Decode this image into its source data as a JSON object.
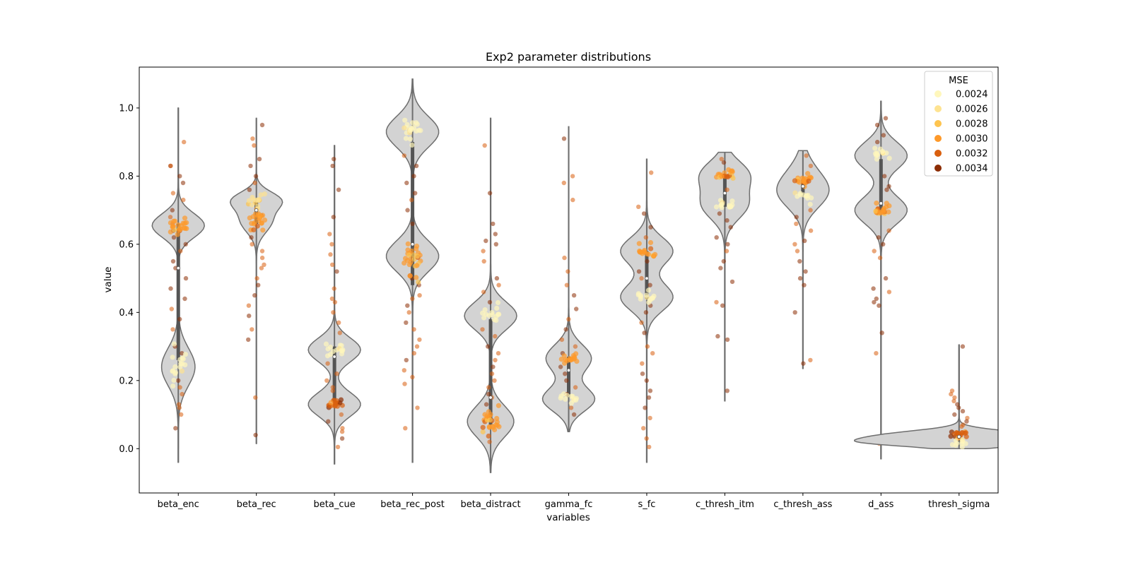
{
  "chart_data": {
    "type": "violin",
    "title": "Exp2 parameter distributions",
    "xlabel": "variables",
    "ylabel": "value",
    "ylim": [
      -0.13,
      1.12
    ],
    "yticks": [
      "0.0",
      "0.2",
      "0.4",
      "0.6",
      "0.8",
      "1.0"
    ],
    "categories": [
      "beta_enc",
      "beta_rec",
      "beta_cue",
      "beta_rec_post",
      "beta_distract",
      "gamma_fc",
      "s_fc",
      "c_thresh_itm",
      "c_thresh_ass",
      "d_ass",
      "thresh_sigma"
    ],
    "legend": {
      "title": "MSE",
      "placement": "upper right",
      "entries": [
        {
          "label": "0.0024",
          "color": "#fff7bc"
        },
        {
          "label": "0.0026",
          "color": "#fee391"
        },
        {
          "label": "0.0028",
          "color": "#fec44f"
        },
        {
          "label": "0.0030",
          "color": "#fe9929"
        },
        {
          "label": "0.0032",
          "color": "#d95f0e"
        },
        {
          "label": "0.0034",
          "color": "#8c2d04"
        }
      ]
    },
    "violins": [
      {
        "name": "beta_enc",
        "min": -0.04,
        "max": 1.0,
        "modes": [
          [
            0.24,
            0.055
          ],
          [
            0.655,
            0.035
          ]
        ],
        "median": 0.53,
        "q1": 0.26,
        "q3": 0.66,
        "clusters": [
          {
            "center": 0.655,
            "spread": 0.01,
            "n": 22,
            "mse": 3
          },
          {
            "center": 0.24,
            "spread": 0.03,
            "n": 18,
            "mse": 0
          }
        ],
        "scatter": [
          0.9,
          0.83,
          0.83,
          0.8,
          0.78,
          0.75,
          0.73,
          0.7,
          0.68,
          0.66,
          0.64,
          0.62,
          0.6,
          0.58,
          0.55,
          0.53,
          0.5,
          0.47,
          0.44,
          0.41,
          0.38,
          0.35,
          0.3,
          0.28,
          0.2,
          0.18,
          0.16,
          0.13,
          0.12,
          0.1,
          0.06
        ]
      },
      {
        "name": "beta_rec",
        "min": 0.015,
        "max": 0.97,
        "modes": [
          [
            0.67,
            0.035
          ],
          [
            0.73,
            0.025
          ]
        ],
        "median": 0.7,
        "q1": 0.66,
        "q3": 0.73,
        "clusters": [
          {
            "center": 0.67,
            "spread": 0.015,
            "n": 24,
            "mse": 3
          },
          {
            "center": 0.73,
            "spread": 0.015,
            "n": 14,
            "mse": 1
          }
        ],
        "scatter": [
          0.95,
          0.91,
          0.89,
          0.85,
          0.83,
          0.8,
          0.78,
          0.76,
          0.62,
          0.6,
          0.58,
          0.56,
          0.54,
          0.53,
          0.5,
          0.48,
          0.45,
          0.42,
          0.39,
          0.35,
          0.32,
          0.15,
          0.04
        ]
      },
      {
        "name": "beta_cue",
        "min": -0.045,
        "max": 0.89,
        "modes": [
          [
            0.13,
            0.035
          ],
          [
            0.29,
            0.035
          ]
        ],
        "median": 0.27,
        "q1": 0.14,
        "q3": 0.3,
        "clusters": [
          {
            "center": 0.13,
            "spread": 0.008,
            "n": 18,
            "mse": 4
          },
          {
            "center": 0.29,
            "spread": 0.012,
            "n": 14,
            "mse": 0
          }
        ],
        "scatter": [
          0.85,
          0.83,
          0.76,
          0.68,
          0.63,
          0.6,
          0.57,
          0.54,
          0.52,
          0.47,
          0.44,
          0.43,
          0.4,
          0.37,
          0.34,
          0.25,
          0.22,
          0.2,
          0.18,
          0.17,
          0.1,
          0.08,
          0.06,
          0.05,
          0.03,
          0.005
        ]
      },
      {
        "name": "beta_rec_post",
        "min": -0.04,
        "max": 1.085,
        "modes": [
          [
            0.93,
            0.045
          ],
          [
            0.565,
            0.045
          ]
        ],
        "median": 0.6,
        "q1": 0.48,
        "q3": 0.9,
        "clusters": [
          {
            "center": 0.93,
            "spread": 0.02,
            "n": 20,
            "mse": 0
          },
          {
            "center": 0.565,
            "spread": 0.025,
            "n": 28,
            "mse": 3
          }
        ],
        "scatter": [
          0.86,
          0.83,
          0.8,
          0.78,
          0.75,
          0.73,
          0.7,
          0.66,
          0.5,
          0.48,
          0.45,
          0.44,
          0.42,
          0.4,
          0.37,
          0.35,
          0.32,
          0.3,
          0.28,
          0.26,
          0.23,
          0.21,
          0.19,
          0.12,
          0.06
        ]
      },
      {
        "name": "beta_distract",
        "min": -0.07,
        "max": 0.97,
        "modes": [
          [
            0.08,
            0.045
          ],
          [
            0.39,
            0.04
          ]
        ],
        "median": 0.15,
        "q1": 0.07,
        "q3": 0.38,
        "clusters": [
          {
            "center": 0.085,
            "spread": 0.02,
            "n": 26,
            "mse": 3
          },
          {
            "center": 0.39,
            "spread": 0.015,
            "n": 14,
            "mse": 0
          }
        ],
        "scatter": [
          0.89,
          0.75,
          0.66,
          0.63,
          0.61,
          0.6,
          0.58,
          0.55,
          0.5,
          0.48,
          0.46,
          0.43,
          0.35,
          0.33,
          0.3,
          0.28,
          0.26,
          0.24,
          0.22,
          0.2,
          0.18,
          0.16,
          0.15,
          0.13,
          0.02
        ]
      },
      {
        "name": "gamma_fc",
        "min": 0.05,
        "max": 0.945,
        "modes": [
          [
            0.145,
            0.035
          ],
          [
            0.265,
            0.04
          ]
        ],
        "median": 0.23,
        "q1": 0.15,
        "q3": 0.27,
        "clusters": [
          {
            "center": 0.265,
            "spread": 0.006,
            "n": 16,
            "mse": 3
          },
          {
            "center": 0.148,
            "spread": 0.006,
            "n": 12,
            "mse": 0
          }
        ],
        "scatter": [
          0.91,
          0.8,
          0.78,
          0.73,
          0.56,
          0.52,
          0.48,
          0.45,
          0.41,
          0.38,
          0.35,
          0.32,
          0.3,
          0.28,
          0.24,
          0.22,
          0.2,
          0.18,
          0.16,
          0.12,
          0.1
        ]
      },
      {
        "name": "s_fc",
        "min": -0.04,
        "max": 0.85,
        "modes": [
          [
            0.445,
            0.04
          ],
          [
            0.58,
            0.04
          ]
        ],
        "median": 0.5,
        "q1": 0.44,
        "q3": 0.58,
        "clusters": [
          {
            "center": 0.58,
            "spread": 0.008,
            "n": 18,
            "mse": 3
          },
          {
            "center": 0.445,
            "spread": 0.01,
            "n": 14,
            "mse": 0
          }
        ],
        "scatter": [
          0.81,
          0.71,
          0.69,
          0.65,
          0.62,
          0.55,
          0.52,
          0.5,
          0.48,
          0.42,
          0.4,
          0.37,
          0.34,
          0.3,
          0.28,
          0.25,
          0.22,
          0.2,
          0.17,
          0.15,
          0.12,
          0.09,
          0.06,
          0.03,
          0.005
        ]
      },
      {
        "name": "c_thresh_itm",
        "min": 0.14,
        "max": 0.87,
        "modes": [
          [
            0.805,
            0.04
          ],
          [
            0.715,
            0.042
          ]
        ],
        "median": 0.75,
        "q1": 0.71,
        "q3": 0.8,
        "clusters": [
          {
            "center": 0.805,
            "spread": 0.006,
            "n": 20,
            "mse": 3
          },
          {
            "center": 0.715,
            "spread": 0.008,
            "n": 14,
            "mse": 0
          }
        ],
        "scatter": [
          0.85,
          0.84,
          0.76,
          0.69,
          0.67,
          0.65,
          0.62,
          0.6,
          0.58,
          0.55,
          0.53,
          0.49,
          0.43,
          0.42,
          0.33,
          0.32,
          0.17
        ]
      },
      {
        "name": "c_thresh_ass",
        "min": 0.235,
        "max": 0.875,
        "modes": [
          [
            0.79,
            0.055
          ],
          [
            0.745,
            0.045
          ]
        ],
        "median": 0.77,
        "q1": 0.74,
        "q3": 0.79,
        "clusters": [
          {
            "center": 0.79,
            "spread": 0.008,
            "n": 22,
            "mse": 3
          },
          {
            "center": 0.745,
            "spread": 0.008,
            "n": 12,
            "mse": 0
          }
        ],
        "scatter": [
          0.86,
          0.83,
          0.7,
          0.68,
          0.66,
          0.64,
          0.61,
          0.6,
          0.58,
          0.55,
          0.52,
          0.5,
          0.48,
          0.4,
          0.26,
          0.25
        ]
      },
      {
        "name": "d_ass",
        "min": -0.03,
        "max": 1.02,
        "modes": [
          [
            0.86,
            0.04
          ],
          [
            0.7,
            0.04
          ]
        ],
        "median": 0.72,
        "q1": 0.69,
        "q3": 0.85,
        "clusters": [
          {
            "center": 0.7,
            "spread": 0.008,
            "n": 20,
            "mse": 3
          },
          {
            "center": 0.865,
            "spread": 0.01,
            "n": 14,
            "mse": 0
          }
        ],
        "scatter": [
          0.97,
          0.95,
          0.92,
          0.9,
          0.8,
          0.77,
          0.76,
          0.64,
          0.62,
          0.6,
          0.58,
          0.56,
          0.5,
          0.47,
          0.46,
          0.44,
          0.43,
          0.42,
          0.34,
          0.28,
          0.02,
          0.015
        ]
      },
      {
        "name": "thresh_sigma",
        "min": 0.0,
        "max": 0.305,
        "modes": [
          [
            0.04,
            0.014
          ],
          [
            0.018,
            0.012
          ]
        ],
        "median": 0.035,
        "q1": 0.02,
        "q3": 0.045,
        "width_scale": 4.0,
        "clusters": [
          {
            "center": 0.042,
            "spread": 0.008,
            "n": 18,
            "mse": 4
          },
          {
            "center": 0.015,
            "spread": 0.006,
            "n": 10,
            "mse": 0
          }
        ],
        "scatter": [
          0.3,
          0.17,
          0.16,
          0.15,
          0.14,
          0.13,
          0.12,
          0.11,
          0.1,
          0.09,
          0.08,
          0.07,
          0.065
        ]
      }
    ]
  }
}
